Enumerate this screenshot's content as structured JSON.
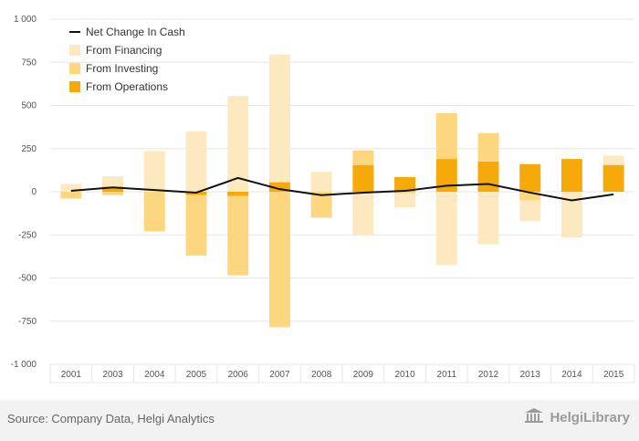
{
  "colors": {
    "financing": "#fde9c0",
    "investing": "#fcd77f",
    "operations": "#f5aa0a",
    "net_line": "#111111",
    "grid": "#e6e6e6"
  },
  "chart_data": {
    "type": "bar",
    "categories": [
      "2001",
      "2003",
      "2004",
      "2005",
      "2006",
      "2007",
      "2008",
      "2009",
      "2010",
      "2011",
      "2012",
      "2013",
      "2014",
      "2015"
    ],
    "series": [
      {
        "name": "From Operations",
        "kind": "bar",
        "values": [
          0,
          30,
          0,
          -20,
          -25,
          55,
          0,
          155,
          85,
          190,
          175,
          160,
          190,
          155
        ]
      },
      {
        "name": "From Investing",
        "kind": "bar",
        "values": [
          -40,
          -20,
          -230,
          -350,
          -460,
          -785,
          -150,
          85,
          -10,
          265,
          165,
          -50,
          0,
          0
        ]
      },
      {
        "name": "From Financing",
        "kind": "bar",
        "values": [
          45,
          60,
          235,
          350,
          555,
          740,
          115,
          -250,
          -80,
          -425,
          -305,
          -120,
          -265,
          55
        ]
      },
      {
        "name": "Net Change In Cash",
        "kind": "line",
        "values": [
          5,
          25,
          10,
          -5,
          80,
          15,
          -20,
          -5,
          5,
          35,
          45,
          -5,
          -50,
          -15
        ]
      }
    ],
    "ylim": [
      -1000,
      1000
    ],
    "yticks": [
      -1000,
      -750,
      -500,
      -250,
      0,
      250,
      500,
      750,
      1000
    ],
    "ytick_labels": [
      "-1 000",
      "-750",
      "-500",
      "-250",
      "0",
      "250",
      "500",
      "750",
      "1 000"
    ],
    "legend_position": "top-left",
    "legend": [
      "Net Change In Cash",
      "From Financing",
      "From Investing",
      "From Operations"
    ],
    "grid": true
  },
  "footer": {
    "source": "Source: Company Data, Helgi Analytics",
    "logo_text": "HelgiLibrary",
    "logo_icon": "library-building-icon"
  }
}
